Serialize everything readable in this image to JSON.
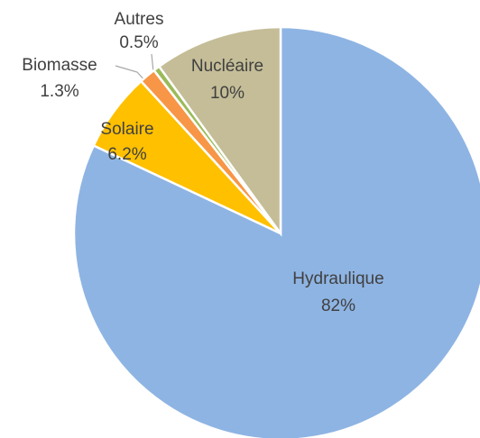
{
  "chart_data": {
    "type": "pie",
    "categories": [
      "Hydraulique",
      "Solaire",
      "Biomasse",
      "Autres",
      "Nucléaire"
    ],
    "values": [
      82,
      6.2,
      1.3,
      0.5,
      10
    ],
    "value_labels": [
      "82%",
      "6.2%",
      "1.3%",
      "0.5%",
      "10%"
    ],
    "colors": [
      "#8EB4E3",
      "#FFC000",
      "#F79646",
      "#9BBB59",
      "#C4BD97"
    ],
    "start_angle": 0,
    "direction": "clockwise"
  }
}
